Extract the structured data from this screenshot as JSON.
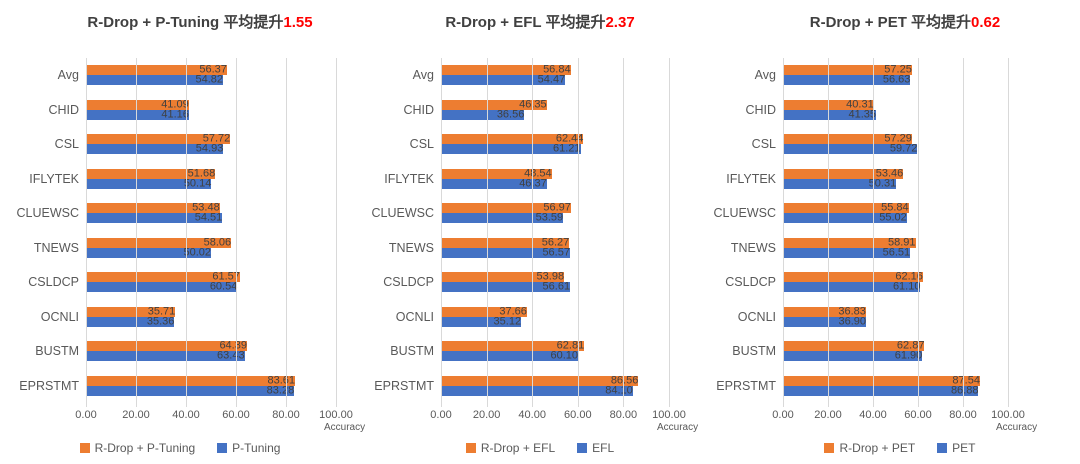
{
  "colors": {
    "series_orange": "#ED7D31",
    "series_blue": "#4472C4",
    "improvement_red": "#FF0000",
    "title_text": "#404040",
    "axis_text": "#595959",
    "value_label_text": "#404040",
    "gridline": "#D9D9D9",
    "background": "#FFFFFF"
  },
  "chart_data": [
    {
      "type": "bar",
      "orientation": "horizontal",
      "title_prefix": "R-Drop + P-Tuning 平均提升",
      "improvement": "1.55",
      "xlabel": "Accuracy",
      "xlim": [
        0,
        100
      ],
      "xticks": [
        "0.00",
        "20.00",
        "40.00",
        "60.00",
        "80.00",
        "100.00"
      ],
      "grid": "vertical",
      "legend_position": "bottom",
      "categories": [
        "Avg",
        "CHID",
        "CSL",
        "IFLYTEK",
        "CLUEWSC",
        "TNEWS",
        "CSLDCP",
        "OCNLI",
        "BUSTM",
        "EPRSTMT"
      ],
      "series": [
        {
          "name": "R-Drop + P-Tuning",
          "color": "#ED7D31",
          "values": [
            56.37,
            41.09,
            57.72,
            51.68,
            53.48,
            58.06,
            61.57,
            35.71,
            64.39,
            83.61
          ]
        },
        {
          "name": "P-Tuning",
          "color": "#4472C4",
          "values": [
            54.82,
            41.16,
            54.93,
            50.14,
            54.51,
            50.02,
            60.54,
            35.36,
            63.43,
            83.28
          ]
        }
      ]
    },
    {
      "type": "bar",
      "orientation": "horizontal",
      "title_prefix": "R-Drop + EFL 平均提升",
      "improvement": "2.37",
      "xlabel": "Accuracy",
      "xlim": [
        0,
        100
      ],
      "xticks": [
        "0.00",
        "20.00",
        "40.00",
        "60.00",
        "80.00",
        "100.00"
      ],
      "grid": "vertical",
      "legend_position": "bottom",
      "categories": [
        "Avg",
        "CHID",
        "CSL",
        "IFLYTEK",
        "CLUEWSC",
        "TNEWS",
        "CSLDCP",
        "OCNLI",
        "BUSTM",
        "EPRSTMT"
      ],
      "series": [
        {
          "name": "R-Drop + EFL",
          "color": "#ED7D31",
          "values": [
            56.84,
            46.35,
            62.44,
            48.54,
            56.97,
            56.27,
            53.98,
            37.66,
            62.81,
            86.56
          ]
        },
        {
          "name": "EFL",
          "color": "#4472C4",
          "values": [
            54.47,
            36.56,
            61.21,
            46.37,
            53.59,
            56.57,
            56.61,
            35.12,
            60.1,
            84.1
          ]
        }
      ]
    },
    {
      "type": "bar",
      "orientation": "horizontal",
      "title_prefix": "R-Drop + PET 平均提升",
      "improvement": "0.62",
      "xlabel": "Accuracy",
      "xlim": [
        0,
        100
      ],
      "xticks": [
        "0.00",
        "20.00",
        "40.00",
        "60.00",
        "80.00",
        "100.00"
      ],
      "grid": "vertical",
      "legend_position": "bottom",
      "categories": [
        "Avg",
        "CHID",
        "CSL",
        "IFLYTEK",
        "CLUEWSC",
        "TNEWS",
        "CSLDCP",
        "OCNLI",
        "BUSTM",
        "EPRSTMT"
      ],
      "series": [
        {
          "name": "R-Drop + PET",
          "color": "#ED7D31",
          "values": [
            57.25,
            40.31,
            57.29,
            53.46,
            55.84,
            58.91,
            62.16,
            36.83,
            62.87,
            87.54
          ]
        },
        {
          "name": "PET",
          "color": "#4472C4",
          "values": [
            56.63,
            41.35,
            59.72,
            50.31,
            55.02,
            56.51,
            61.1,
            36.9,
            61.9,
            86.88
          ]
        }
      ]
    }
  ]
}
